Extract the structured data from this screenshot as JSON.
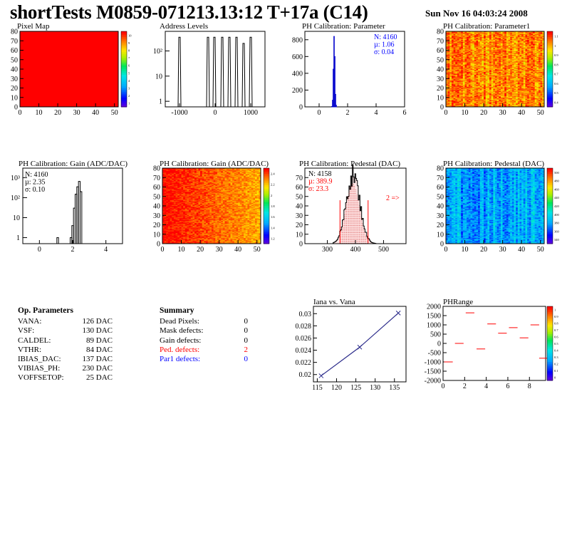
{
  "header": {
    "title": "shortTests M0859-071213.13:12 T+17a (C14)",
    "date": "Sun Nov 16 04:03:24 2008"
  },
  "colors": {
    "red": "#ff0000",
    "blue": "#0000ff",
    "black": "#000000",
    "dark_blue": "#2a2a8a"
  },
  "op_params": {
    "title": "Op. Parameters",
    "rows": [
      {
        "k": "VANA:",
        "v": "126 DAC"
      },
      {
        "k": "VSF:",
        "v": "130 DAC"
      },
      {
        "k": "CALDEL:",
        "v": "89 DAC"
      },
      {
        "k": "VTHR:",
        "v": "84 DAC"
      },
      {
        "k": "IBIAS_DAC:",
        "v": "137 DAC"
      },
      {
        "k": "VIBIAS_PH:",
        "v": "230 DAC"
      },
      {
        "k": "VOFFSETOP:",
        "v": "25 DAC"
      }
    ]
  },
  "summary": {
    "title": "Summary",
    "rows": [
      {
        "k": "Dead Pixels:",
        "v": "0",
        "color": "black"
      },
      {
        "k": "Mask defects:",
        "v": "0",
        "color": "black"
      },
      {
        "k": "Gain defects:",
        "v": "0",
        "color": "black"
      },
      {
        "k": "Ped. defects:",
        "v": "2",
        "color": "red"
      },
      {
        "k": "Par1 defects:",
        "v": "0",
        "color": "blue"
      }
    ]
  },
  "chart_data": [
    {
      "id": "pixel_map",
      "type": "heatmap",
      "title": "Pixel Map",
      "xlim": [
        0,
        52
      ],
      "ylim": [
        0,
        80
      ],
      "x_ticks": [
        "0",
        "10",
        "20",
        "30",
        "40",
        "50"
      ],
      "y_ticks": [
        "0",
        "10",
        "20",
        "30",
        "40",
        "50",
        "60",
        "70",
        "80"
      ],
      "fill": "uniform-max",
      "z_ticks": [
        "10",
        "9",
        "8",
        "7",
        "6",
        "5",
        "4",
        "3",
        "2",
        "1"
      ]
    },
    {
      "id": "address_levels",
      "type": "bar",
      "title": "Address Levels",
      "xlim": [
        -1400,
        1400
      ],
      "x_ticks": [
        "-1000",
        "0",
        "1000"
      ],
      "y_scale": "log",
      "y_ticks": [
        "1",
        "10",
        "10²"
      ],
      "peaks": [
        {
          "x": -1000,
          "y": 350
        },
        {
          "x": -200,
          "y": 350
        },
        {
          "x": -20,
          "y": 350
        },
        {
          "x": 200,
          "y": 350
        },
        {
          "x": 400,
          "y": 350
        },
        {
          "x": 600,
          "y": 350
        },
        {
          "x": 800,
          "y": 200
        },
        {
          "x": 1000,
          "y": 350
        }
      ]
    },
    {
      "id": "ph_cal_param",
      "type": "bar",
      "title": "PH Calibration: Parameter",
      "xlim": [
        -1,
        6
      ],
      "ylim": [
        0,
        900
      ],
      "x_ticks": [
        "0",
        "2",
        "4",
        "6"
      ],
      "y_ticks": [
        "0",
        "200",
        "400",
        "600",
        "800"
      ],
      "stats": [
        "N: 4160",
        "µ: 1.06",
        "σ: 0.04"
      ],
      "hist": [
        {
          "x": 0.9,
          "y": 5
        },
        {
          "x": 0.95,
          "y": 80
        },
        {
          "x": 1.0,
          "y": 450
        },
        {
          "x": 1.05,
          "y": 840
        },
        {
          "x": 1.1,
          "y": 600
        },
        {
          "x": 1.15,
          "y": 150
        },
        {
          "x": 1.2,
          "y": 20
        }
      ]
    },
    {
      "id": "ph_cal_param1",
      "type": "heatmap",
      "title": "PH Calibration: Parameter1",
      "xlim": [
        0,
        52
      ],
      "ylim": [
        0,
        80
      ],
      "x_ticks": [
        "0",
        "10",
        "20",
        "30",
        "40",
        "50"
      ],
      "y_ticks": [
        "0",
        "10",
        "20",
        "30",
        "40",
        "50",
        "60",
        "70",
        "80"
      ],
      "z_ticks": [
        "1.1",
        "1",
        "0.9",
        "0.8",
        "0.7",
        "0.6",
        "0.5",
        "0.4"
      ],
      "fill": "mostly-red"
    },
    {
      "id": "ph_cal_gain_hist",
      "type": "bar",
      "title": "PH Calibration: Gain (ADC/DAC)",
      "xlim": [
        -1,
        5
      ],
      "x_ticks": [
        "0",
        "2",
        "4"
      ],
      "y_scale": "log",
      "y_ticks": [
        "1",
        "10",
        "10²",
        "10³"
      ],
      "stats": [
        "N: 4160",
        "µ: 2.35",
        "σ: 0.10"
      ],
      "hist": [
        {
          "x": 1.1,
          "y": 1
        },
        {
          "x": 1.9,
          "y": 1
        },
        {
          "x": 2.0,
          "y": 4
        },
        {
          "x": 2.1,
          "y": 30
        },
        {
          "x": 2.2,
          "y": 150
        },
        {
          "x": 2.3,
          "y": 350
        },
        {
          "x": 2.4,
          "y": 650
        },
        {
          "x": 2.5,
          "y": 200
        }
      ]
    },
    {
      "id": "ph_cal_gain_map",
      "type": "heatmap",
      "title": "PH Calibration: Gain (ADC/DAC)",
      "xlim": [
        0,
        52
      ],
      "ylim": [
        0,
        80
      ],
      "x_ticks": [
        "0",
        "10",
        "20",
        "30",
        "40",
        "50"
      ],
      "y_ticks": [
        "0",
        "10",
        "20",
        "30",
        "40",
        "50",
        "60",
        "70",
        "80"
      ],
      "z_ticks": [
        "2.4",
        "2.2",
        "2",
        "1.8",
        "1.6",
        "1.4",
        "1.2"
      ],
      "fill": "gradient-red-orange"
    },
    {
      "id": "ph_cal_pedestal_hist",
      "type": "bar",
      "title": "PH Calibration: Pedestal (DAC)",
      "xlim": [
        220,
        580
      ],
      "ylim": [
        0,
        80
      ],
      "x_ticks": [
        "300",
        "400",
        "500"
      ],
      "y_ticks": [
        "0",
        "10",
        "20",
        "30",
        "40",
        "50",
        "60",
        "70"
      ],
      "stats": [
        "N: 4158",
        "µ: 389.9",
        "σ: 23.3"
      ],
      "cut_lines": [
        345,
        445
      ],
      "annotation": "2 =>",
      "hist_mean": 390,
      "hist_sigma": 24,
      "hist_peak": 75
    },
    {
      "id": "ph_cal_pedestal_map",
      "type": "heatmap",
      "title": "PH Calibration: Pedestal (DAC)",
      "xlim": [
        0,
        52
      ],
      "ylim": [
        0,
        80
      ],
      "x_ticks": [
        "0",
        "10",
        "20",
        "30",
        "40",
        "50"
      ],
      "y_ticks": [
        "0",
        "10",
        "20",
        "30",
        "40",
        "50",
        "60",
        "70",
        "80"
      ],
      "z_ticks": [
        "500",
        "480",
        "460",
        "440",
        "420",
        "400",
        "380",
        "360",
        "340"
      ],
      "fill": "mostly-blue"
    },
    {
      "id": "iana_vana",
      "type": "line",
      "title": "Iana vs. Vana",
      "xlim": [
        114,
        138
      ],
      "ylim": [
        0.0188,
        0.0312
      ],
      "x_ticks": [
        "115",
        "120",
        "125",
        "130",
        "135"
      ],
      "y_ticks": [
        "0.02",
        "0.022",
        "0.024",
        "0.026",
        "0.028",
        "0.03"
      ],
      "x": [
        116,
        126,
        136
      ],
      "y": [
        0.0198,
        0.0245,
        0.0301
      ]
    },
    {
      "id": "ph_range",
      "type": "scatter",
      "title": "PHRange",
      "xlim": [
        0,
        9.5
      ],
      "ylim": [
        -2000,
        2000
      ],
      "x_ticks": [
        "0",
        "2",
        "4",
        "6",
        "8"
      ],
      "y_ticks": [
        "2000",
        "1500",
        "1000",
        "500",
        "0",
        "-500",
        "-1000",
        "-1500",
        "-2000"
      ],
      "z_ticks": [
        "1",
        "0.9",
        "0.8",
        "0.7",
        "0.6",
        "0.5",
        "0.4",
        "0.3",
        "0.2",
        "0.1",
        "0"
      ],
      "segments": [
        {
          "x": 0.5,
          "y": -1000
        },
        {
          "x": 1.5,
          "y": 0
        },
        {
          "x": 2.5,
          "y": 1650
        },
        {
          "x": 3.5,
          "y": -300
        },
        {
          "x": 4.5,
          "y": 1050
        },
        {
          "x": 5.5,
          "y": 550
        },
        {
          "x": 6.5,
          "y": 850
        },
        {
          "x": 7.5,
          "y": 300
        },
        {
          "x": 8.5,
          "y": 1000
        },
        {
          "x": 9.3,
          "y": -800
        }
      ]
    }
  ]
}
